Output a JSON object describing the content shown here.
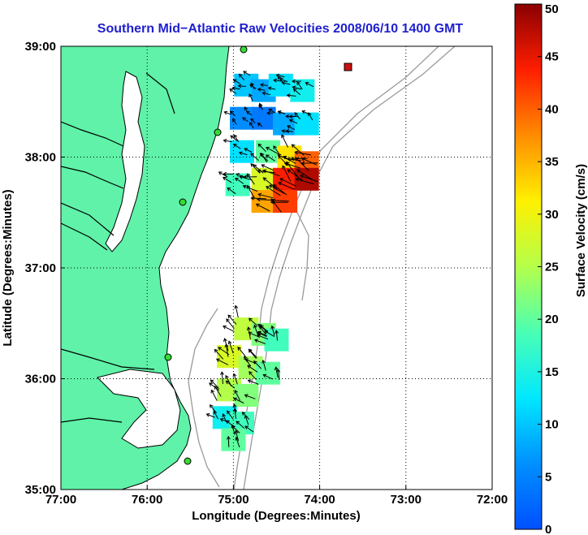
{
  "chart_data": {
    "type": "heatmap",
    "title": "Southern Mid−Atlantic Raw Velocities 2008/06/10 1400 GMT",
    "xlabel": "Longitude (Degrees:Minutes)",
    "ylabel": "Latitude (Degrees:Minutes)",
    "colorbar_label": "Surface Velocity (cm/s)",
    "x_ticks": [
      "77:00",
      "76:00",
      "75:00",
      "74:00",
      "73:00",
      "72:00"
    ],
    "y_ticks": [
      "39:00",
      "38:00",
      "37:00",
      "36:00",
      "35:00"
    ],
    "xlim": [
      -77,
      -72
    ],
    "ylim": [
      35,
      39
    ],
    "colorbar_ticks": [
      "50",
      "45",
      "40",
      "35",
      "30",
      "25",
      "20",
      "15",
      "10",
      "5",
      "0"
    ],
    "clim": [
      0,
      50
    ],
    "grid": true,
    "colors": {
      "title": "#1f1fd0",
      "land": "#5ff2a8",
      "contour": "#9a9a9a",
      "coast": "#000000",
      "site_marker": "#33dd33",
      "buoy_marker": "#cc1111"
    },
    "regions": [
      {
        "name": "northern coverage",
        "cells": [
          {
            "lon": -74.85,
            "lat": 38.65,
            "v": 10
          },
          {
            "lon": -74.65,
            "lat": 38.6,
            "v": 8
          },
          {
            "lon": -74.45,
            "lat": 38.65,
            "v": 12
          },
          {
            "lon": -74.2,
            "lat": 38.6,
            "v": 14
          },
          {
            "lon": -74.9,
            "lat": 38.35,
            "v": 6
          },
          {
            "lon": -74.65,
            "lat": 38.35,
            "v": 4
          },
          {
            "lon": -74.4,
            "lat": 38.3,
            "v": 8
          },
          {
            "lon": -74.15,
            "lat": 38.3,
            "v": 12
          },
          {
            "lon": -74.9,
            "lat": 38.05,
            "v": 12
          },
          {
            "lon": -74.6,
            "lat": 38.05,
            "v": 20
          },
          {
            "lon": -74.35,
            "lat": 38.0,
            "v": 32
          },
          {
            "lon": -74.15,
            "lat": 37.95,
            "v": 40
          },
          {
            "lon": -74.95,
            "lat": 37.75,
            "v": 18
          },
          {
            "lon": -74.65,
            "lat": 37.8,
            "v": 28
          },
          {
            "lon": -74.4,
            "lat": 37.8,
            "v": 44
          },
          {
            "lon": -74.15,
            "lat": 37.8,
            "v": 48
          },
          {
            "lon": -74.65,
            "lat": 37.6,
            "v": 36
          },
          {
            "lon": -74.4,
            "lat": 37.6,
            "v": 42
          }
        ]
      },
      {
        "name": "southern coverage",
        "cells": [
          {
            "lon": -74.85,
            "lat": 36.45,
            "v": 26
          },
          {
            "lon": -74.65,
            "lat": 36.4,
            "v": 22
          },
          {
            "lon": -74.5,
            "lat": 36.35,
            "v": 18
          },
          {
            "lon": -75.05,
            "lat": 36.2,
            "v": 28
          },
          {
            "lon": -74.8,
            "lat": 36.1,
            "v": 24
          },
          {
            "lon": -74.6,
            "lat": 36.05,
            "v": 20
          },
          {
            "lon": -75.05,
            "lat": 35.9,
            "v": 25
          },
          {
            "lon": -74.85,
            "lat": 35.85,
            "v": 22
          },
          {
            "lon": -75.1,
            "lat": 35.65,
            "v": 14
          },
          {
            "lon": -74.9,
            "lat": 35.6,
            "v": 18
          },
          {
            "lon": -75.0,
            "lat": 35.45,
            "v": 20
          }
        ]
      }
    ]
  }
}
